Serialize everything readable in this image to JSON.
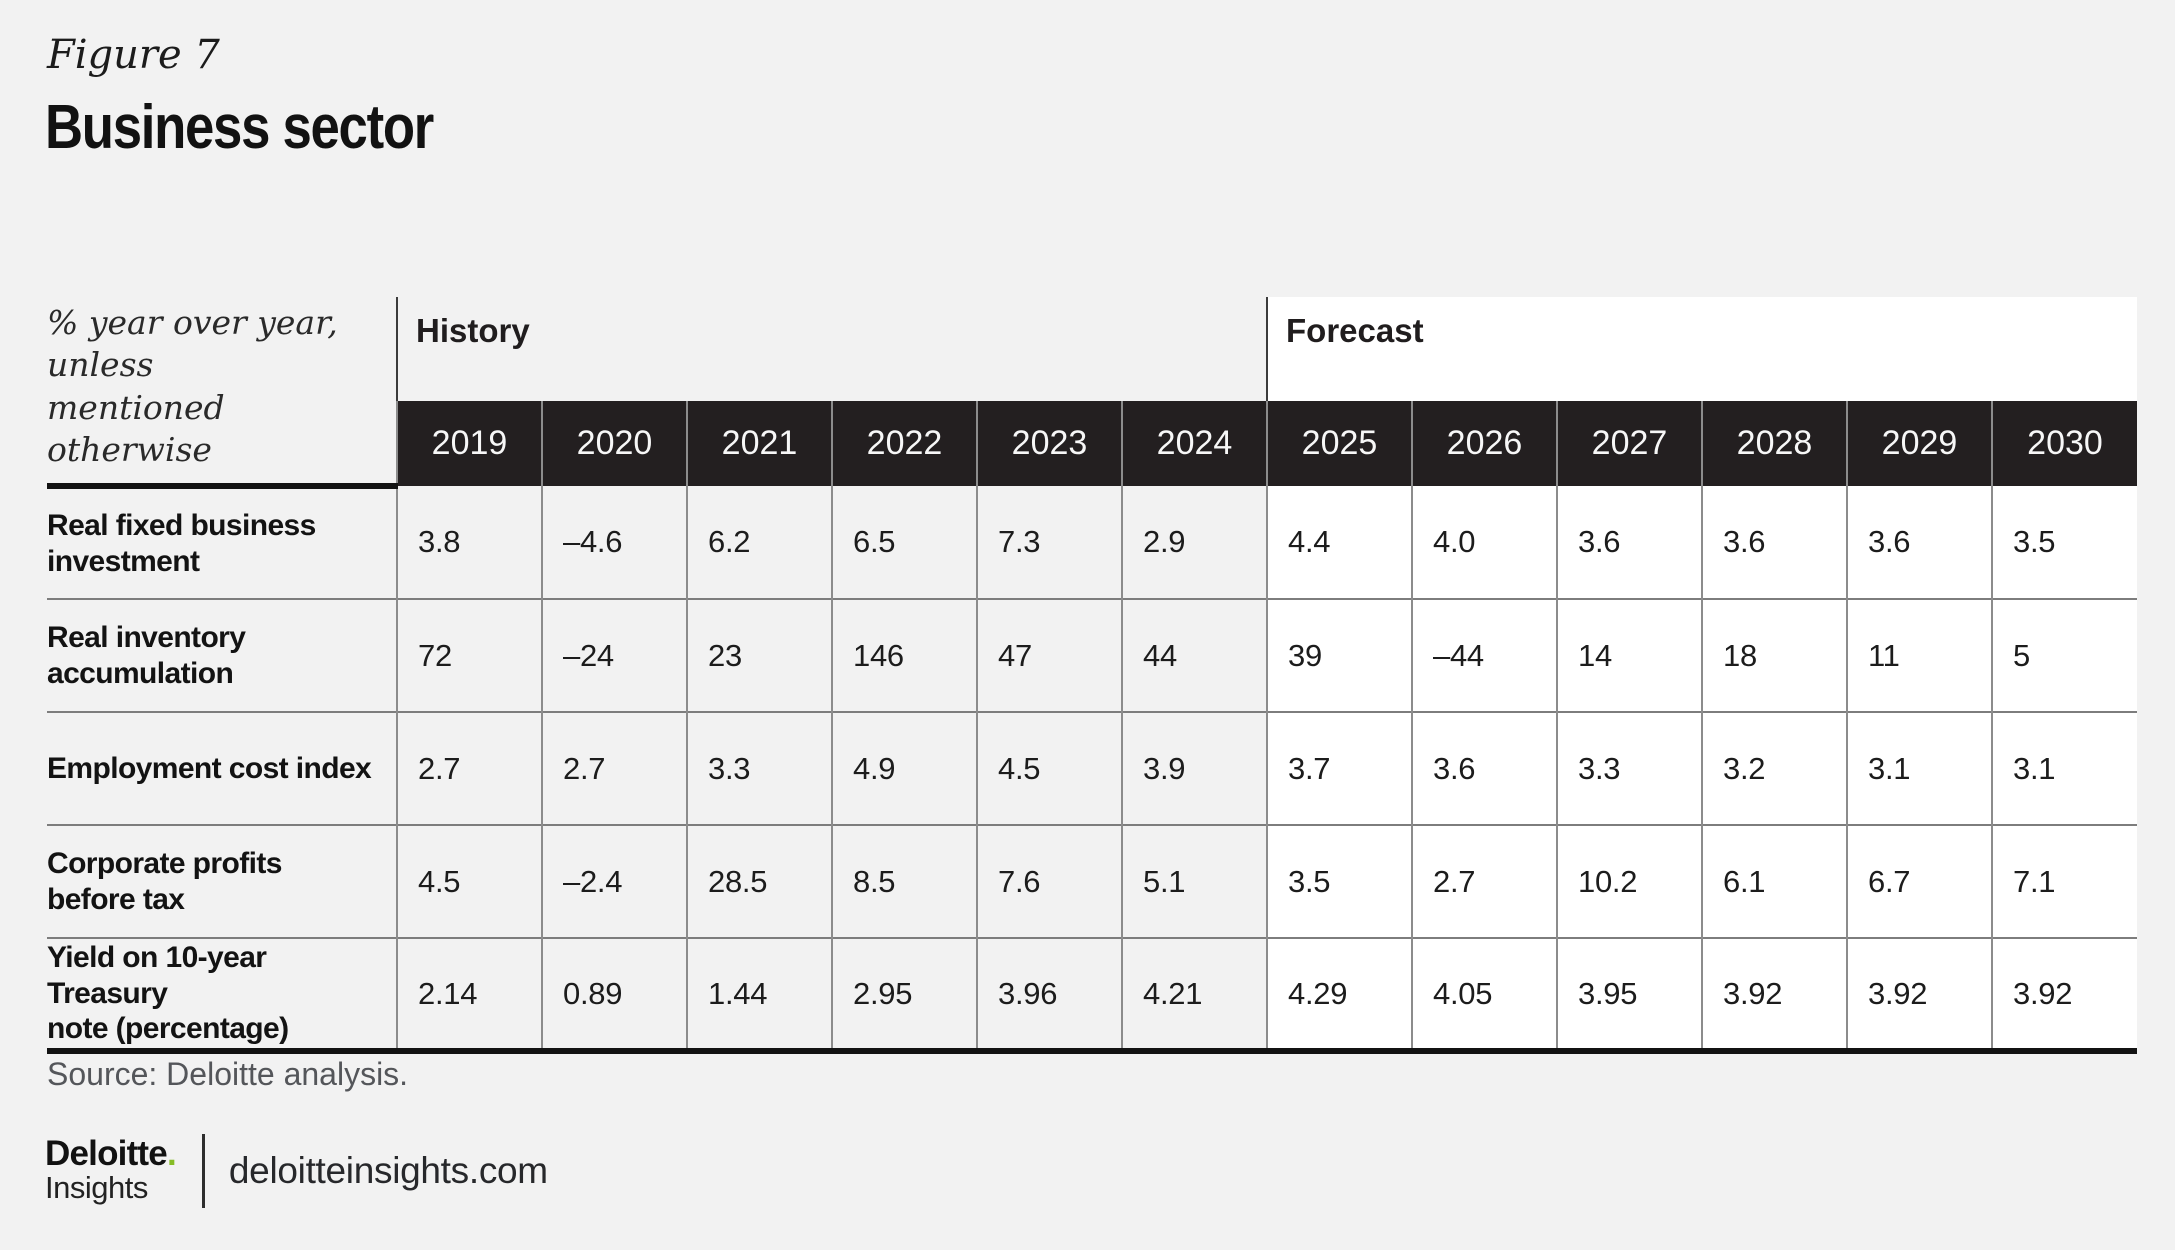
{
  "figure_label": "Figure 7",
  "title": "Business sector",
  "chart_data": {
    "type": "table",
    "title": "Business sector",
    "figure": "Figure 7",
    "unit_note": "% year over year, unless mentioned otherwise",
    "unit_note_lines": [
      "% year over year, unless",
      "mentioned otherwise"
    ],
    "sections": [
      {
        "label": "History",
        "years": [
          "2019",
          "2020",
          "2021",
          "2022",
          "2023",
          "2024"
        ]
      },
      {
        "label": "Forecast",
        "years": [
          "2025",
          "2026",
          "2027",
          "2028",
          "2029",
          "2030"
        ]
      }
    ],
    "rows": [
      {
        "label": "Real fixed business investment",
        "label_lines": [
          "Real fixed business",
          "investment"
        ],
        "history": [
          "3.8",
          "–4.6",
          "6.2",
          "6.5",
          "7.3",
          "2.9"
        ],
        "forecast": [
          "4.4",
          "4.0",
          "3.6",
          "3.6",
          "3.6",
          "3.5"
        ]
      },
      {
        "label": "Real inventory accumulation",
        "label_lines": [
          "Real inventory",
          "accumulation"
        ],
        "history": [
          "72",
          "–24",
          "23",
          "146",
          "47",
          "44"
        ],
        "forecast": [
          "39",
          "–44",
          "14",
          "18",
          "11",
          "5"
        ]
      },
      {
        "label": "Employment cost index",
        "label_lines": [
          "Employment cost index"
        ],
        "history": [
          "2.7",
          "2.7",
          "3.3",
          "4.9",
          "4.5",
          "3.9"
        ],
        "forecast": [
          "3.7",
          "3.6",
          "3.3",
          "3.2",
          "3.1",
          "3.1"
        ]
      },
      {
        "label": "Corporate profits before tax",
        "label_lines": [
          "Corporate profits",
          "before tax"
        ],
        "history": [
          "4.5",
          "–2.4",
          "28.5",
          "8.5",
          "7.6",
          "5.1"
        ],
        "forecast": [
          "3.5",
          "2.7",
          "10.2",
          "6.1",
          "6.7",
          "7.1"
        ]
      },
      {
        "label": "Yield on 10-year Treasury note (percentage)",
        "label_lines": [
          "Yield on 10-year Treasury",
          "note (percentage)"
        ],
        "history": [
          "2.14",
          "0.89",
          "1.44",
          "2.95",
          "3.96",
          "4.21"
        ],
        "forecast": [
          "4.29",
          "4.05",
          "3.95",
          "3.92",
          "3.92",
          "3.92"
        ]
      }
    ]
  },
  "source": "Source: Deloitte analysis.",
  "footer": {
    "brand_name": "Deloitte",
    "brand_dot": ".",
    "brand_sub": "Insights",
    "site": "deloitteinsights.com"
  },
  "colors": {
    "page_bg": "#f2f2f2",
    "year_header_bg": "#231f20",
    "year_header_text": "#f7f7f7",
    "forecast_bg": "#ffffff",
    "accent_green": "#86bc25",
    "source_text": "#54565a",
    "grid_line": "#8c8c8c",
    "heavy_rule": "#131313"
  }
}
